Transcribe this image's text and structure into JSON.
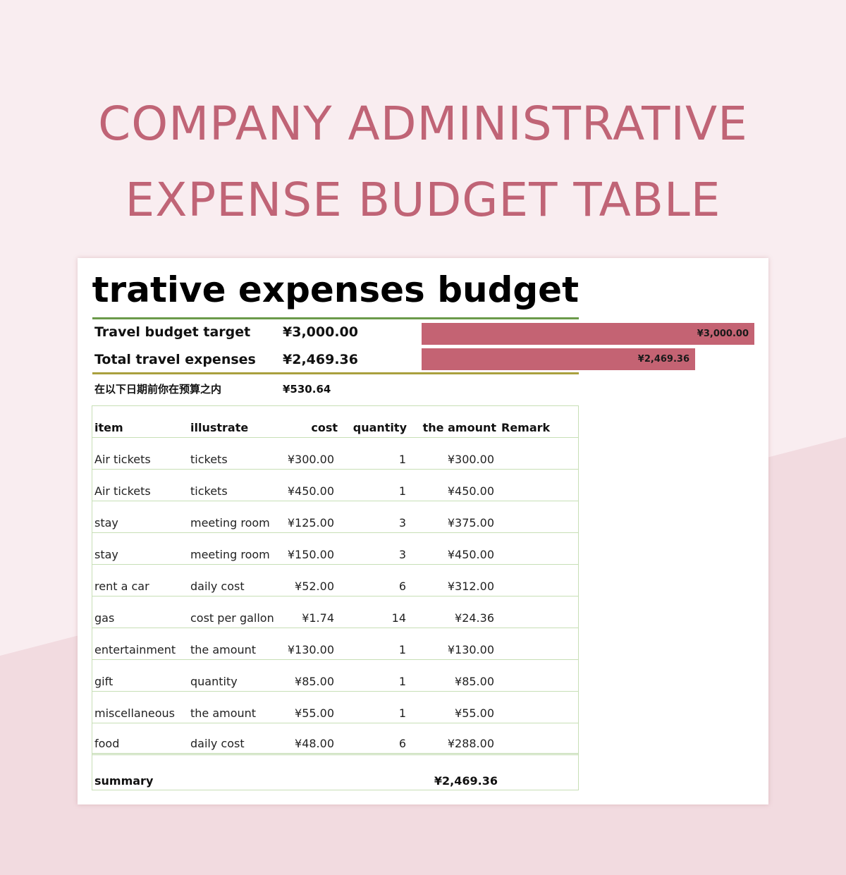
{
  "page_title": {
    "line1": "COMPANY ADMINISTRATIVE",
    "line2": "EXPENSE BUDGET TABLE"
  },
  "sheet": {
    "title": "Administrative expenses budget",
    "budget_target": {
      "label": "Travel budget target",
      "value": "¥3,000.00",
      "bar_label": "¥3,000.00",
      "bar_fraction": 1.0
    },
    "total_expenses": {
      "label": "Total travel expenses",
      "value": "¥2,469.36",
      "bar_label": "¥2,469.36",
      "bar_fraction": 0.823
    },
    "remaining": {
      "label": "在以下日期前你在预算之内",
      "value": "¥530.64"
    },
    "colors": {
      "bar": "#c46373",
      "title": "#c06476",
      "table_border": "#c7dfb6"
    }
  },
  "table": {
    "headers": {
      "item": "item",
      "illustrate": "illustrate",
      "cost": "cost",
      "quantity": "quantity",
      "amount": "the amount",
      "remark": "Remark"
    },
    "rows": [
      {
        "item": "Air tickets",
        "illustrate": "tickets",
        "cost": "¥300.00",
        "quantity": "1",
        "amount": "¥300.00",
        "remark": ""
      },
      {
        "item": "Air tickets",
        "illustrate": "tickets",
        "cost": "¥450.00",
        "quantity": "1",
        "amount": "¥450.00",
        "remark": ""
      },
      {
        "item": "stay",
        "illustrate": "meeting room",
        "cost": "¥125.00",
        "quantity": "3",
        "amount": "¥375.00",
        "remark": ""
      },
      {
        "item": "stay",
        "illustrate": "meeting room",
        "cost": "¥150.00",
        "quantity": "3",
        "amount": "¥450.00",
        "remark": ""
      },
      {
        "item": "rent a car",
        "illustrate": "daily cost",
        "cost": "¥52.00",
        "quantity": "6",
        "amount": "¥312.00",
        "remark": ""
      },
      {
        "item": "gas",
        "illustrate": "cost per gallon",
        "cost": "¥1.74",
        "quantity": "14",
        "amount": "¥24.36",
        "remark": ""
      },
      {
        "item": "entertainment",
        "illustrate": "the amount",
        "cost": "¥130.00",
        "quantity": "1",
        "amount": "¥130.00",
        "remark": ""
      },
      {
        "item": "gift",
        "illustrate": "quantity",
        "cost": "¥85.00",
        "quantity": "1",
        "amount": "¥85.00",
        "remark": ""
      },
      {
        "item": "miscellaneous",
        "illustrate": "the amount",
        "cost": "¥55.00",
        "quantity": "1",
        "amount": "¥55.00",
        "remark": ""
      },
      {
        "item": "food",
        "illustrate": "daily cost",
        "cost": "¥48.00",
        "quantity": "6",
        "amount": "¥288.00",
        "remark": ""
      }
    ],
    "summary": {
      "label": "summary",
      "amount": "¥2,469.36"
    }
  }
}
